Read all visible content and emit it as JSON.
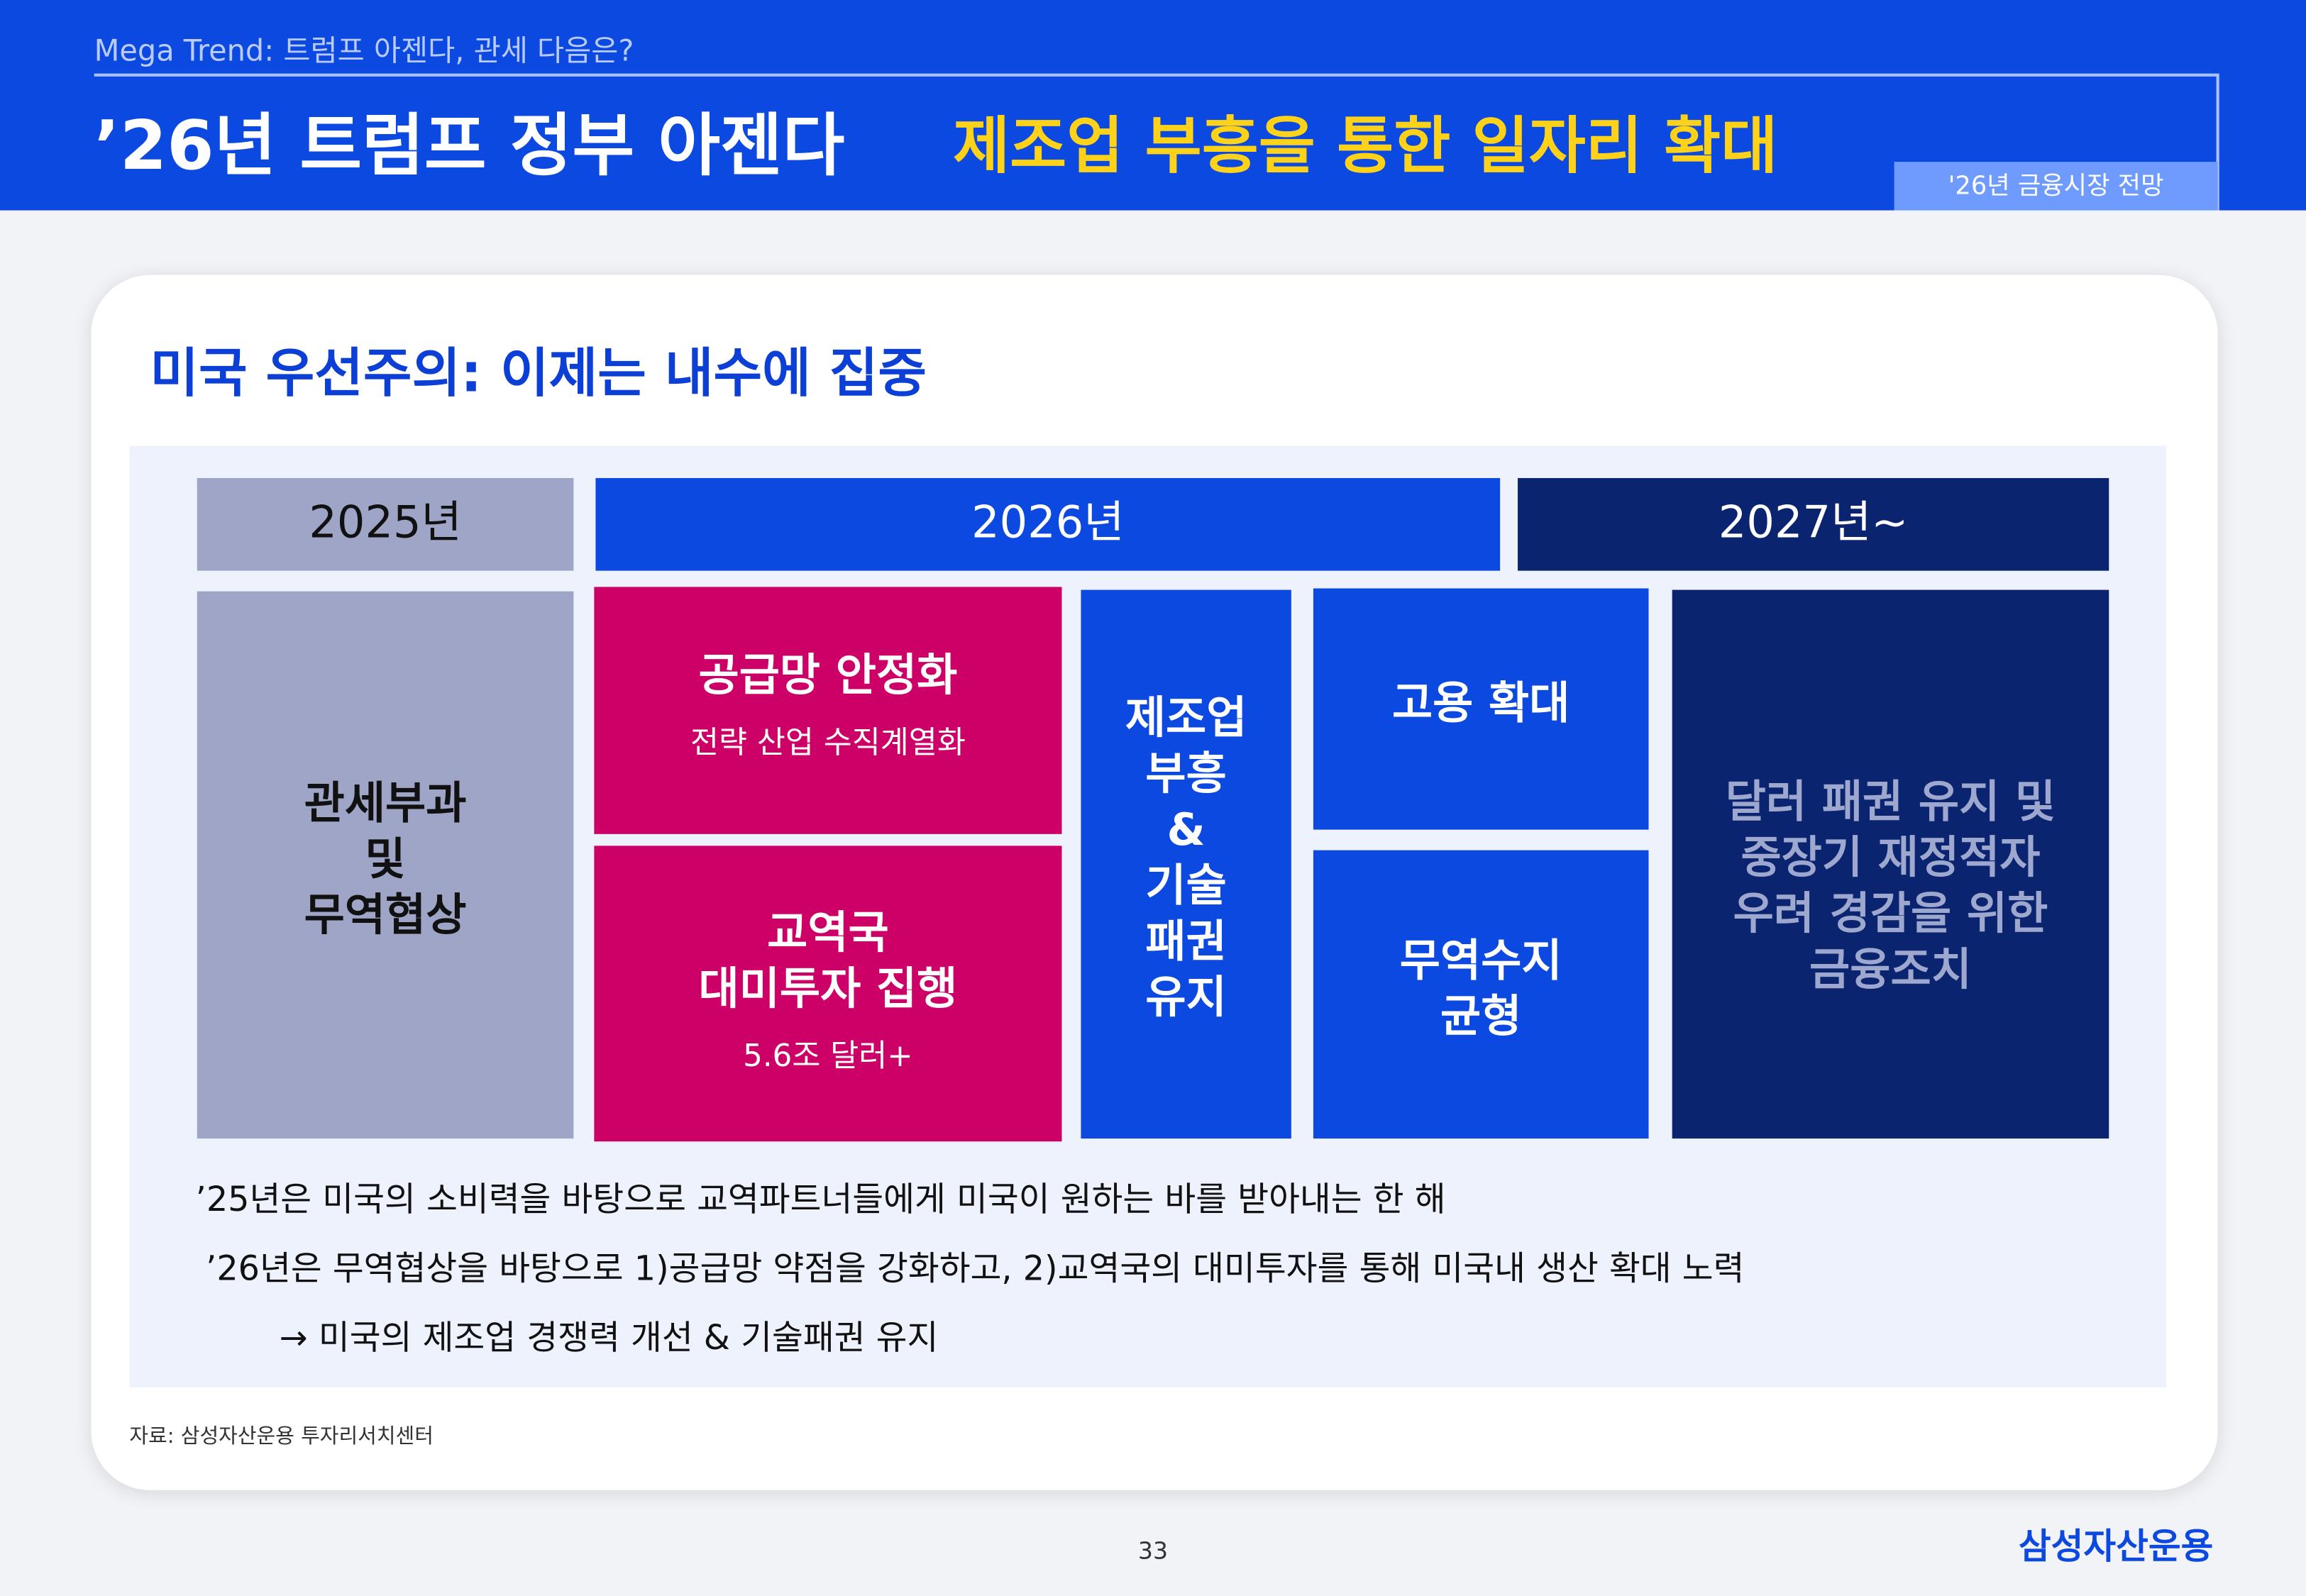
{
  "header": {
    "subtitle": "Mega Trend: 트럼프 아젠다, 관세 다음은?",
    "title": "’26년 트럼프 정부 아젠다",
    "title_highlight": "제조업 부흥을 통한 일자리 확대",
    "tag": "'26년 금융시장 전망"
  },
  "card": {
    "heading": "미국 우선주의: 이제는 내수에 집중",
    "columns": [
      "2025년",
      "2026년",
      "2027년~"
    ],
    "boxes": [
      {
        "lines": [
          "관세부과",
          "및",
          "무역협상"
        ]
      },
      {
        "lines": [
          "공급망 안정화"
        ],
        "sub": "전략 산업 수직계열화"
      },
      {
        "lines": [
          "교역국",
          "대미투자 집행"
        ],
        "sub": "5.6조 달러+"
      },
      {
        "lines": [
          "제조업",
          "부흥",
          "&",
          "기술",
          "패권",
          "유지"
        ]
      },
      {
        "lines": [
          "고용 확대"
        ]
      },
      {
        "lines": [
          "무역수지",
          "균형"
        ]
      },
      {
        "lines": [
          "달러 패권 유지 및",
          "중장기 재정적자",
          "우려 경감을 위한",
          "금융조치"
        ]
      }
    ],
    "notes": [
      "’25년은 미국의 소비력을 바탕으로 교역파트너들에게 미국이 원하는 바를 받아내는 한 해",
      "’26년은 무역협상을 바탕으로 1)공급망 약점을 강화하고, 2)교역국의 대미투자를 통해 미국내 생산 확대 노력",
      "→ 미국의 제조업 경쟁력 개선 & 기술패권 유지"
    ],
    "source": "자료: 삼성자산운용 투자리서치센터"
  },
  "footer": {
    "page": "33",
    "logo": "삼성자산운용"
  }
}
